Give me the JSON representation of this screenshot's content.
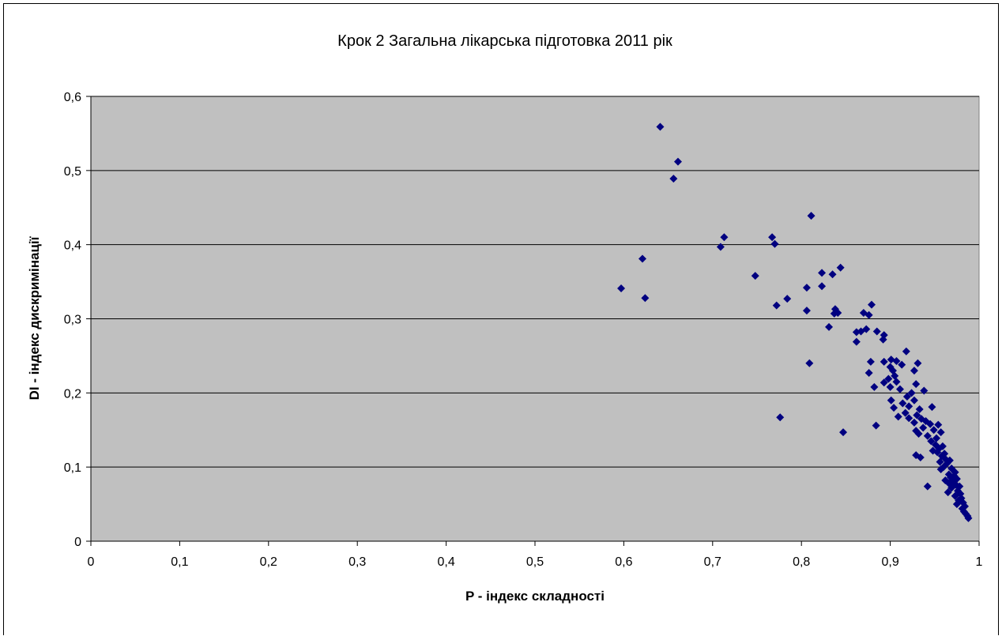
{
  "chart_data": {
    "type": "scatter",
    "title": "Крок 2 Загальна лікарська підготовка 2011 рік",
    "xlabel": "P - індекс складності",
    "ylabel": "DI - індекс дискримінації",
    "xlim": [
      0,
      1
    ],
    "ylim": [
      0,
      0.6
    ],
    "x_ticks": [
      "0",
      "0,1",
      "0,2",
      "0,3",
      "0,4",
      "0,5",
      "0,6",
      "0,7",
      "0,8",
      "0,9",
      "1"
    ],
    "y_ticks": [
      "0",
      "0,1",
      "0,2",
      "0,3",
      "0,4",
      "0,5",
      "0,6"
    ],
    "grid": "horizontal",
    "legend": "none",
    "colors": {
      "plot_bg": "#c0c0c0",
      "marker": "#000080",
      "grid": "#000000"
    },
    "marker": "diamond",
    "series": [
      {
        "points": [
          [
            0.641,
            0.559
          ],
          [
            0.661,
            0.512
          ],
          [
            0.656,
            0.489
          ],
          [
            0.811,
            0.439
          ],
          [
            0.713,
            0.41
          ],
          [
            0.767,
            0.41
          ],
          [
            0.77,
            0.401
          ],
          [
            0.709,
            0.397
          ],
          [
            0.621,
            0.381
          ],
          [
            0.844,
            0.369
          ],
          [
            0.823,
            0.362
          ],
          [
            0.835,
            0.36
          ],
          [
            0.748,
            0.358
          ],
          [
            0.823,
            0.344
          ],
          [
            0.806,
            0.342
          ],
          [
            0.597,
            0.341
          ],
          [
            0.624,
            0.328
          ],
          [
            0.784,
            0.327
          ],
          [
            0.879,
            0.319
          ],
          [
            0.772,
            0.318
          ],
          [
            0.838,
            0.313
          ],
          [
            0.806,
            0.311
          ],
          [
            0.841,
            0.308
          ],
          [
            0.837,
            0.307
          ],
          [
            0.87,
            0.308
          ],
          [
            0.876,
            0.305
          ],
          [
            0.831,
            0.289
          ],
          [
            0.873,
            0.286
          ],
          [
            0.867,
            0.283
          ],
          [
            0.862,
            0.282
          ],
          [
            0.885,
            0.283
          ],
          [
            0.893,
            0.278
          ],
          [
            0.892,
            0.272
          ],
          [
            0.862,
            0.269
          ],
          [
            0.918,
            0.256
          ],
          [
            0.901,
            0.245
          ],
          [
            0.878,
            0.242
          ],
          [
            0.893,
            0.242
          ],
          [
            0.907,
            0.243
          ],
          [
            0.931,
            0.24
          ],
          [
            0.809,
            0.24
          ],
          [
            0.913,
            0.238
          ],
          [
            0.9,
            0.235
          ],
          [
            0.903,
            0.23
          ],
          [
            0.927,
            0.23
          ],
          [
            0.876,
            0.227
          ],
          [
            0.905,
            0.223
          ],
          [
            0.898,
            0.219
          ],
          [
            0.893,
            0.214
          ],
          [
            0.907,
            0.215
          ],
          [
            0.929,
            0.212
          ],
          [
            0.9,
            0.208
          ],
          [
            0.882,
            0.208
          ],
          [
            0.911,
            0.205
          ],
          [
            0.938,
            0.203
          ],
          [
            0.924,
            0.2
          ],
          [
            0.919,
            0.195
          ],
          [
            0.927,
            0.19
          ],
          [
            0.901,
            0.19
          ],
          [
            0.914,
            0.186
          ],
          [
            0.921,
            0.182
          ],
          [
            0.947,
            0.181
          ],
          [
            0.933,
            0.178
          ],
          [
            0.904,
            0.18
          ],
          [
            0.917,
            0.173
          ],
          [
            0.93,
            0.17
          ],
          [
            0.909,
            0.168
          ],
          [
            0.776,
            0.167
          ],
          [
            0.935,
            0.165
          ],
          [
            0.921,
            0.166
          ],
          [
            0.94,
            0.162
          ],
          [
            0.927,
            0.16
          ],
          [
            0.945,
            0.158
          ],
          [
            0.954,
            0.157
          ],
          [
            0.884,
            0.156
          ],
          [
            0.937,
            0.153
          ],
          [
            0.929,
            0.149
          ],
          [
            0.949,
            0.15
          ],
          [
            0.957,
            0.147
          ],
          [
            0.847,
            0.147
          ],
          [
            0.932,
            0.145
          ],
          [
            0.942,
            0.142
          ],
          [
            0.952,
            0.139
          ],
          [
            0.946,
            0.135
          ],
          [
            0.951,
            0.13
          ],
          [
            0.959,
            0.128
          ],
          [
            0.955,
            0.125
          ],
          [
            0.948,
            0.122
          ],
          [
            0.953,
            0.12
          ],
          [
            0.961,
            0.118
          ],
          [
            0.929,
            0.116
          ],
          [
            0.958,
            0.115
          ],
          [
            0.934,
            0.113
          ],
          [
            0.962,
            0.111
          ],
          [
            0.967,
            0.109
          ],
          [
            0.956,
            0.107
          ],
          [
            0.964,
            0.105
          ],
          [
            0.96,
            0.1
          ],
          [
            0.969,
            0.098
          ],
          [
            0.957,
            0.097
          ],
          [
            0.973,
            0.093
          ],
          [
            0.966,
            0.09
          ],
          [
            0.972,
            0.088
          ],
          [
            0.968,
            0.086
          ],
          [
            0.975,
            0.084
          ],
          [
            0.962,
            0.082
          ],
          [
            0.97,
            0.08
          ],
          [
            0.966,
            0.078
          ],
          [
            0.974,
            0.076
          ],
          [
            0.978,
            0.074
          ],
          [
            0.942,
            0.074
          ],
          [
            0.969,
            0.072
          ],
          [
            0.976,
            0.068
          ],
          [
            0.965,
            0.066
          ],
          [
            0.979,
            0.064
          ],
          [
            0.973,
            0.061
          ],
          [
            0.98,
            0.058
          ],
          [
            0.977,
            0.055
          ],
          [
            0.982,
            0.052
          ],
          [
            0.975,
            0.05
          ],
          [
            0.984,
            0.047
          ],
          [
            0.981,
            0.044
          ],
          [
            0.983,
            0.04
          ],
          [
            0.985,
            0.037
          ],
          [
            0.987,
            0.034
          ],
          [
            0.988,
            0.031
          ]
        ]
      }
    ]
  }
}
